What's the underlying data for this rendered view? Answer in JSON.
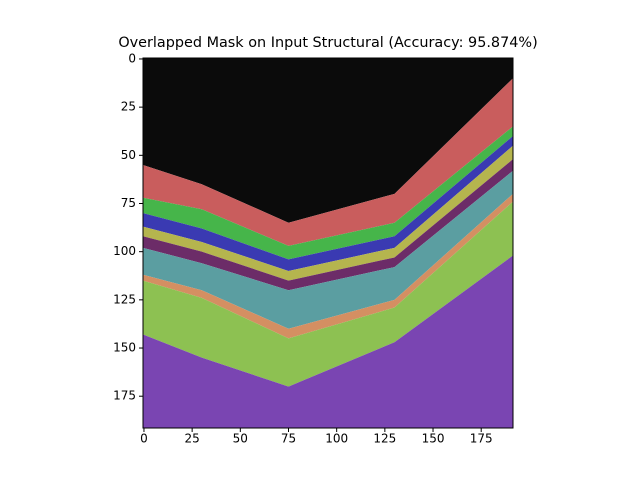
{
  "chart_data": {
    "type": "image",
    "title": "Overlapped Mask on Input Structural (Accuracy: 95.874%)",
    "xlim": [
      -0.5,
      191.5
    ],
    "ylim": [
      191.5,
      -0.5
    ],
    "xticks": [
      0,
      25,
      50,
      75,
      100,
      125,
      150,
      175
    ],
    "yticks": [
      0,
      25,
      50,
      75,
      100,
      125,
      150,
      175
    ]
  }
}
